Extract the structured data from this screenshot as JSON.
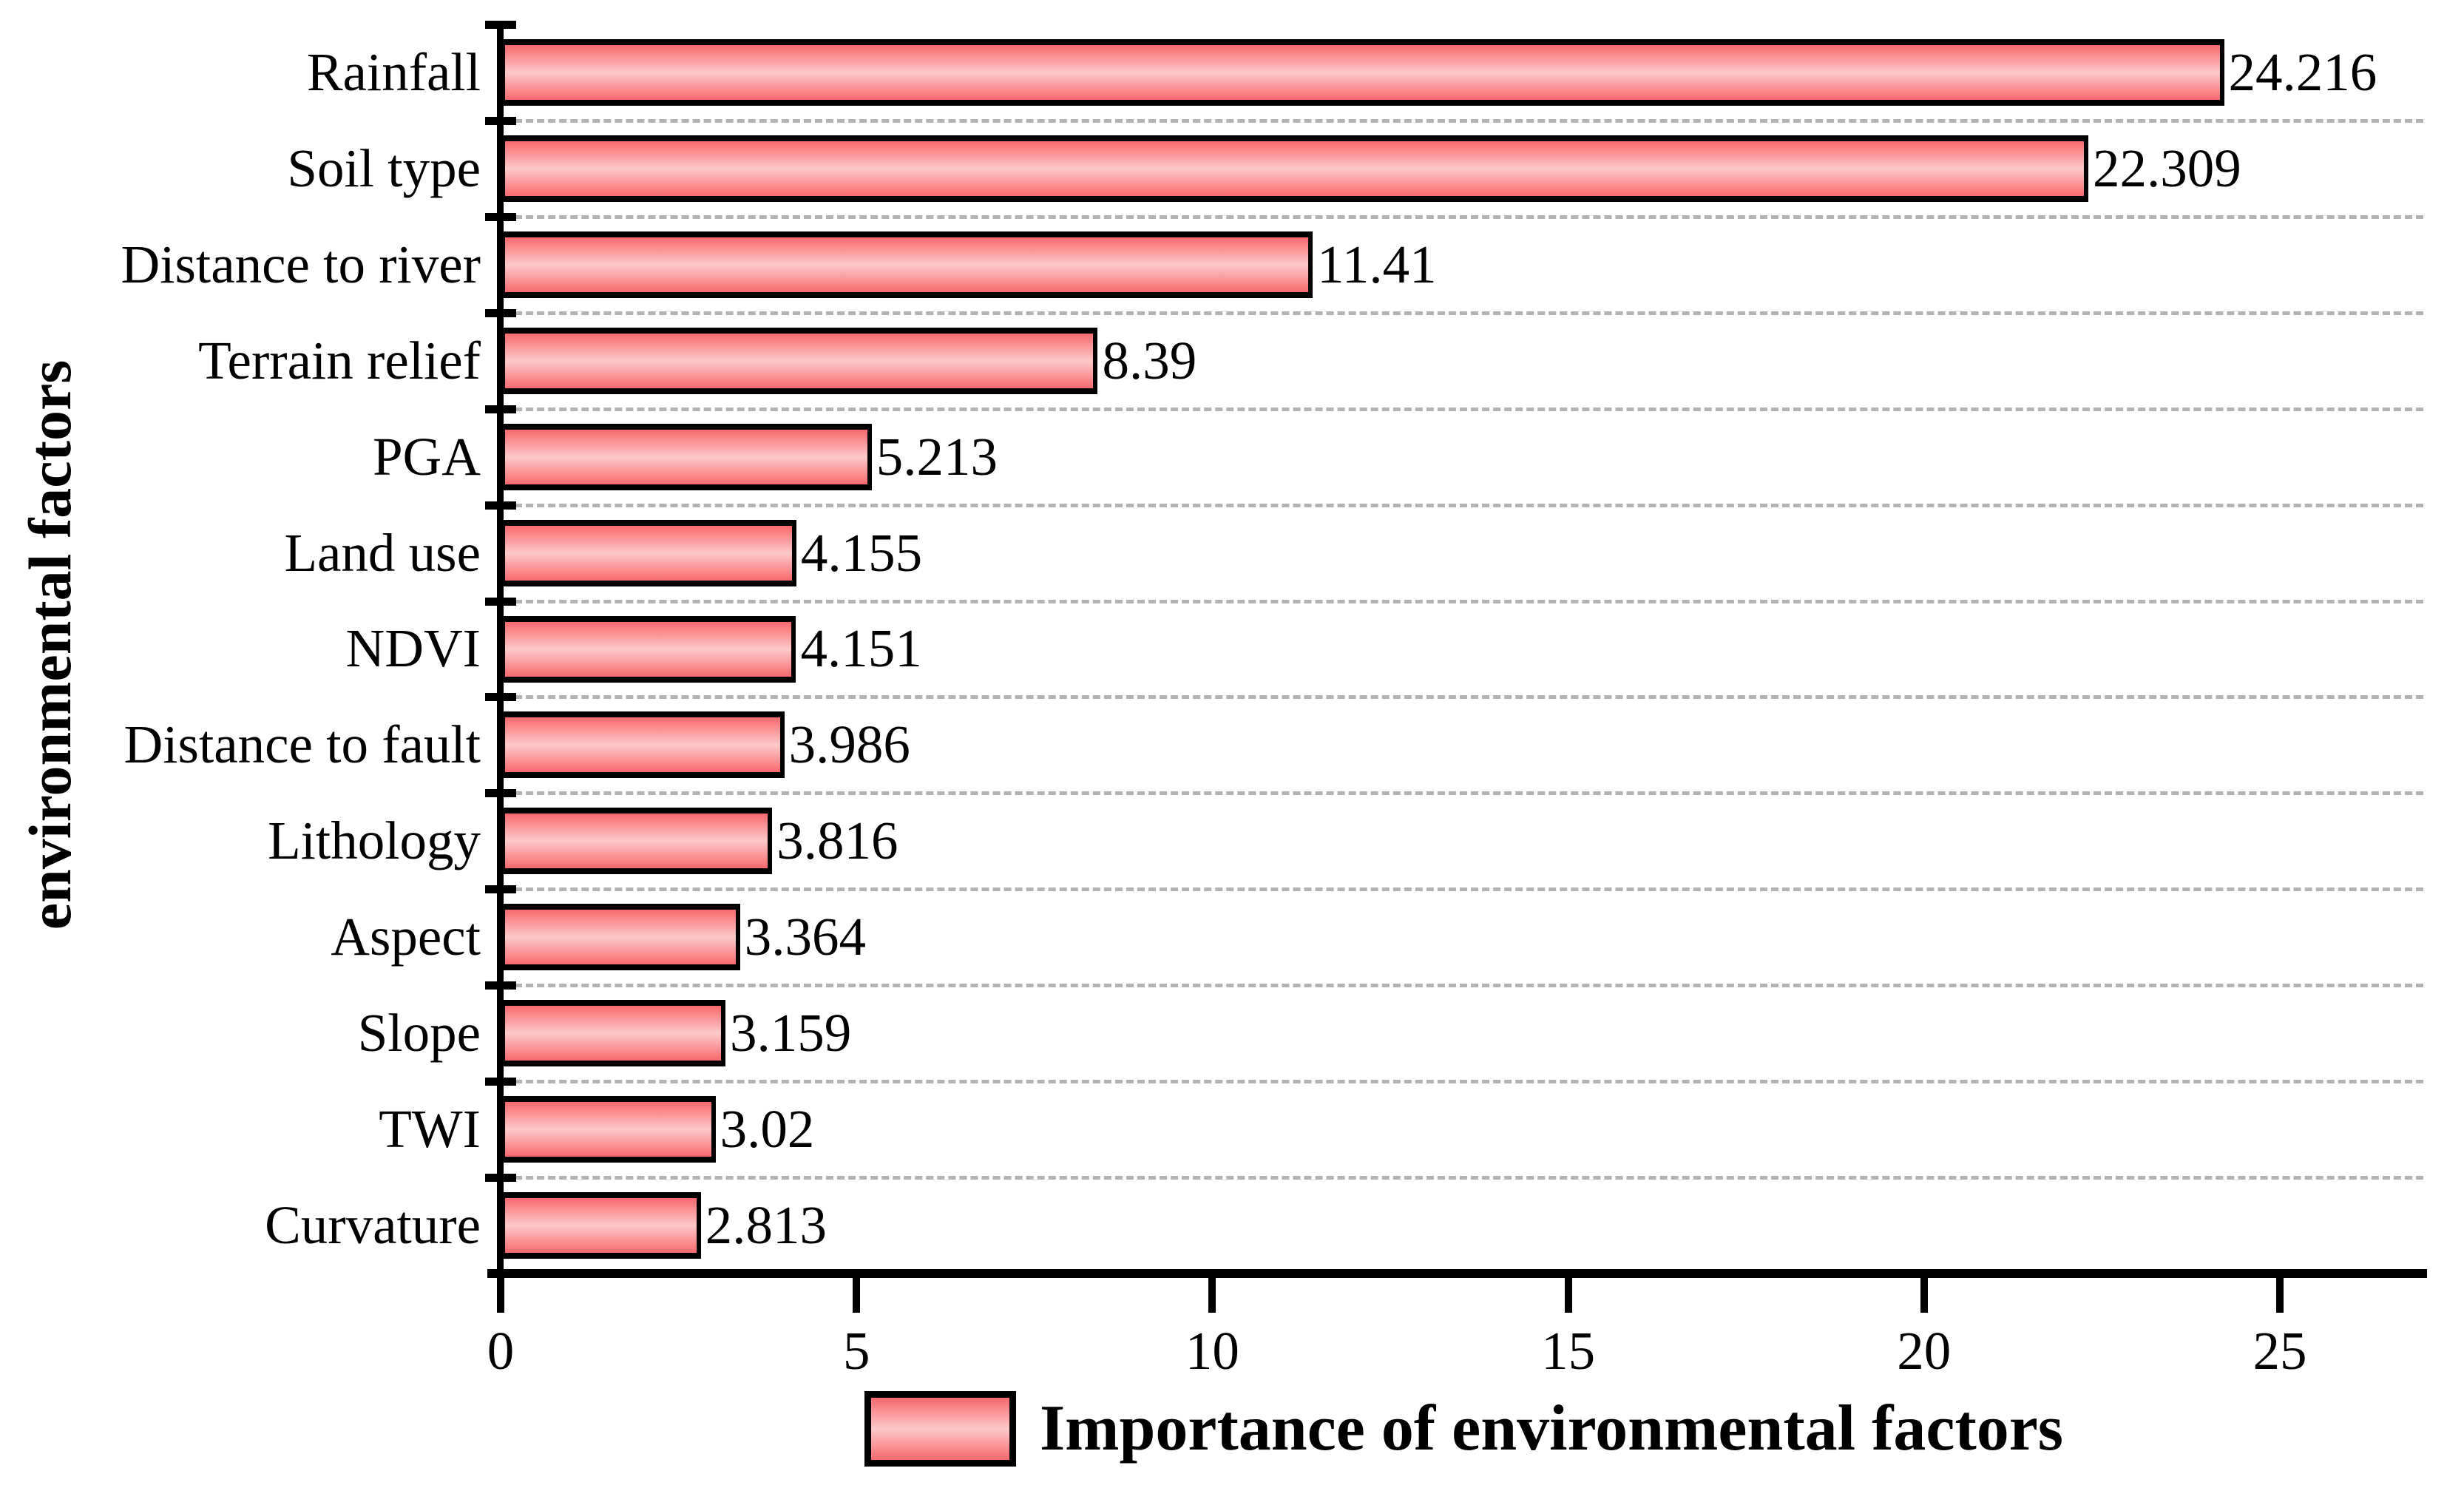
{
  "chart_data": {
    "type": "bar",
    "orientation": "horizontal",
    "title": "",
    "xlabel": "",
    "ylabel": "environmental factors",
    "legend_label": "Importance of environmental factors",
    "legend_position": "bottom-center",
    "categories": [
      "Rainfall",
      "Soil type",
      "Distance to river",
      "Terrain relief",
      "PGA",
      "Land use",
      "NDVI",
      "Distance to fault",
      "Lithology",
      "Aspect",
      "Slope",
      "TWI",
      "Curvature"
    ],
    "values": [
      24.216,
      22.309,
      11.41,
      8.39,
      5.213,
      4.155,
      4.151,
      3.986,
      3.816,
      3.364,
      3.159,
      3.02,
      2.813
    ],
    "value_labels": [
      "24.216",
      "22.309",
      "11.41",
      "8.39",
      "5.213",
      "4.155",
      "4.151",
      "3.986",
      "3.816",
      "3.364",
      "3.159",
      "3.02",
      "2.813"
    ],
    "x_ticks": [
      0,
      5,
      10,
      15,
      20,
      25
    ],
    "x_tick_labels": [
      "0",
      "5",
      "10",
      "15",
      "20",
      "25"
    ],
    "xlim": [
      0,
      27.07
    ],
    "grid": "dashed horizontal lines between category rows",
    "colors": {
      "bar_edge_fill": "#f8696e",
      "bar_center_fill": "#fdc9c9",
      "bar_border": "#000000",
      "axis": "#000000",
      "gridline": "#b3b3b3",
      "text": "#000000",
      "background": "#ffffff"
    }
  }
}
